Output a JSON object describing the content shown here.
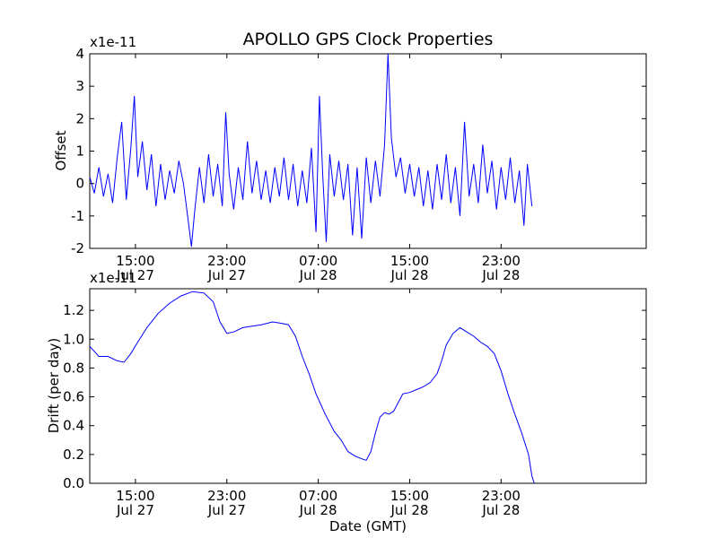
{
  "figure": {
    "title": "APOLLO GPS Clock Properties",
    "line_color": "#0000ff",
    "background": "#ffffff"
  },
  "chart_data": [
    {
      "type": "line",
      "title": "APOLLO GPS Clock Properties",
      "xlabel": "",
      "ylabel": "Offset",
      "y_offset_text": "x1e-11",
      "ylim": [
        -2,
        4
      ],
      "y_ticks": [
        -2,
        -1,
        0,
        1,
        2,
        3,
        4
      ],
      "x_range_hours": [
        11,
        59.7
      ],
      "x_ticks": [
        {
          "hour": 15,
          "time": "15:00",
          "date": "Jul 27"
        },
        {
          "hour": 23,
          "time": "23:00",
          "date": "Jul 27"
        },
        {
          "hour": 31,
          "time": "07:00",
          "date": "Jul 28"
        },
        {
          "hour": 39,
          "time": "15:00",
          "date": "Jul 28"
        },
        {
          "hour": 47,
          "time": "23:00",
          "date": "Jul 28"
        }
      ],
      "series": [
        {
          "note_units": "hours from Jul 27 00:00 GMT; values x1e-11",
          "points": [
            [
              11.0,
              0.2
            ],
            [
              11.4,
              -0.3
            ],
            [
              11.8,
              0.5
            ],
            [
              12.2,
              -0.4
            ],
            [
              12.6,
              0.3
            ],
            [
              13.0,
              -0.6
            ],
            [
              13.4,
              0.8
            ],
            [
              13.8,
              1.9
            ],
            [
              14.2,
              -0.5
            ],
            [
              14.6,
              1.1
            ],
            [
              14.9,
              2.7
            ],
            [
              15.2,
              0.2
            ],
            [
              15.6,
              1.3
            ],
            [
              16.0,
              -0.2
            ],
            [
              16.4,
              0.9
            ],
            [
              16.8,
              -0.7
            ],
            [
              17.2,
              0.6
            ],
            [
              17.6,
              -0.5
            ],
            [
              18.0,
              0.4
            ],
            [
              18.4,
              -0.3
            ],
            [
              18.8,
              0.7
            ],
            [
              19.2,
              0.0
            ],
            [
              19.6,
              -1.1
            ],
            [
              19.9,
              -1.95
            ],
            [
              20.2,
              -0.8
            ],
            [
              20.6,
              0.5
            ],
            [
              21.0,
              -0.6
            ],
            [
              21.4,
              0.9
            ],
            [
              21.8,
              -0.4
            ],
            [
              22.2,
              0.6
            ],
            [
              22.6,
              -0.7
            ],
            [
              22.9,
              2.2
            ],
            [
              23.2,
              0.3
            ],
            [
              23.6,
              -0.8
            ],
            [
              24.0,
              0.5
            ],
            [
              24.4,
              -0.5
            ],
            [
              24.8,
              1.3
            ],
            [
              25.2,
              -0.3
            ],
            [
              25.6,
              0.7
            ],
            [
              26.0,
              -0.5
            ],
            [
              26.4,
              0.4
            ],
            [
              26.8,
              -0.6
            ],
            [
              27.2,
              0.5
            ],
            [
              27.6,
              -0.4
            ],
            [
              28.0,
              0.8
            ],
            [
              28.4,
              -0.5
            ],
            [
              28.8,
              0.6
            ],
            [
              29.2,
              -0.7
            ],
            [
              29.6,
              0.4
            ],
            [
              30.0,
              -0.6
            ],
            [
              30.4,
              1.1
            ],
            [
              30.8,
              -1.5
            ],
            [
              31.1,
              2.7
            ],
            [
              31.4,
              0.2
            ],
            [
              31.7,
              -1.8
            ],
            [
              32.0,
              0.9
            ],
            [
              32.4,
              -0.4
            ],
            [
              32.8,
              0.7
            ],
            [
              33.2,
              -0.5
            ],
            [
              33.6,
              0.6
            ],
            [
              34.0,
              -1.6
            ],
            [
              34.4,
              0.5
            ],
            [
              34.8,
              -1.7
            ],
            [
              35.2,
              0.8
            ],
            [
              35.6,
              -0.6
            ],
            [
              36.0,
              0.7
            ],
            [
              36.4,
              -0.4
            ],
            [
              36.8,
              1.2
            ],
            [
              37.1,
              4.0
            ],
            [
              37.4,
              1.4
            ],
            [
              37.8,
              0.2
            ],
            [
              38.2,
              0.8
            ],
            [
              38.6,
              -0.3
            ],
            [
              39.0,
              0.6
            ],
            [
              39.4,
              -0.4
            ],
            [
              39.8,
              0.5
            ],
            [
              40.2,
              -0.7
            ],
            [
              40.6,
              0.4
            ],
            [
              41.0,
              -0.8
            ],
            [
              41.4,
              0.6
            ],
            [
              41.8,
              -0.5
            ],
            [
              42.2,
              0.9
            ],
            [
              42.6,
              -0.6
            ],
            [
              43.0,
              0.5
            ],
            [
              43.4,
              -1.0
            ],
            [
              43.8,
              1.9
            ],
            [
              44.2,
              -0.4
            ],
            [
              44.6,
              0.6
            ],
            [
              45.0,
              -0.6
            ],
            [
              45.4,
              1.2
            ],
            [
              45.8,
              -0.3
            ],
            [
              46.2,
              0.7
            ],
            [
              46.6,
              -0.8
            ],
            [
              47.0,
              0.5
            ],
            [
              47.4,
              -0.5
            ],
            [
              47.8,
              0.8
            ],
            [
              48.2,
              -0.6
            ],
            [
              48.6,
              0.4
            ],
            [
              49.0,
              -1.3
            ],
            [
              49.3,
              0.6
            ],
            [
              49.7,
              -0.7
            ]
          ]
        }
      ]
    },
    {
      "type": "line",
      "title": "",
      "xlabel": "Date (GMT)",
      "ylabel": "Drift (per day)",
      "y_offset_text": "x1e-11",
      "ylim": [
        0.0,
        1.35
      ],
      "y_ticks": [
        0.0,
        0.2,
        0.4,
        0.6,
        0.8,
        1.0,
        1.2
      ],
      "y_tick_labels": [
        "0.0",
        "0.2",
        "0.4",
        "0.6",
        "0.8",
        "1.0",
        "1.2"
      ],
      "x_range_hours": [
        11,
        59.7
      ],
      "x_ticks": [
        {
          "hour": 15,
          "time": "15:00",
          "date": "Jul 27"
        },
        {
          "hour": 23,
          "time": "23:00",
          "date": "Jul 27"
        },
        {
          "hour": 31,
          "time": "07:00",
          "date": "Jul 28"
        },
        {
          "hour": 39,
          "time": "15:00",
          "date": "Jul 28"
        },
        {
          "hour": 47,
          "time": "23:00",
          "date": "Jul 28"
        }
      ],
      "series": [
        {
          "points": [
            [
              11.0,
              0.95
            ],
            [
              11.8,
              0.88
            ],
            [
              12.6,
              0.88
            ],
            [
              13.4,
              0.85
            ],
            [
              14.0,
              0.84
            ],
            [
              14.6,
              0.9
            ],
            [
              15.2,
              0.98
            ],
            [
              16.0,
              1.08
            ],
            [
              17.0,
              1.18
            ],
            [
              18.0,
              1.25
            ],
            [
              19.0,
              1.3
            ],
            [
              20.0,
              1.33
            ],
            [
              21.0,
              1.32
            ],
            [
              21.8,
              1.26
            ],
            [
              22.4,
              1.12
            ],
            [
              23.0,
              1.04
            ],
            [
              23.6,
              1.05
            ],
            [
              24.4,
              1.08
            ],
            [
              25.2,
              1.09
            ],
            [
              26.0,
              1.1
            ],
            [
              27.0,
              1.12
            ],
            [
              27.8,
              1.11
            ],
            [
              28.4,
              1.1
            ],
            [
              29.0,
              1.02
            ],
            [
              29.6,
              0.88
            ],
            [
              30.2,
              0.76
            ],
            [
              30.8,
              0.62
            ],
            [
              31.6,
              0.48
            ],
            [
              32.4,
              0.36
            ],
            [
              33.0,
              0.3
            ],
            [
              33.6,
              0.22
            ],
            [
              34.2,
              0.19
            ],
            [
              34.8,
              0.17
            ],
            [
              35.2,
              0.16
            ],
            [
              35.6,
              0.22
            ],
            [
              36.0,
              0.35
            ],
            [
              36.4,
              0.46
            ],
            [
              36.8,
              0.49
            ],
            [
              37.2,
              0.48
            ],
            [
              37.6,
              0.5
            ],
            [
              38.0,
              0.56
            ],
            [
              38.4,
              0.62
            ],
            [
              39.0,
              0.63
            ],
            [
              39.6,
              0.65
            ],
            [
              40.2,
              0.67
            ],
            [
              40.8,
              0.7
            ],
            [
              41.4,
              0.76
            ],
            [
              41.8,
              0.85
            ],
            [
              42.2,
              0.96
            ],
            [
              42.8,
              1.04
            ],
            [
              43.4,
              1.08
            ],
            [
              44.0,
              1.05
            ],
            [
              44.6,
              1.02
            ],
            [
              45.2,
              0.98
            ],
            [
              45.8,
              0.95
            ],
            [
              46.4,
              0.9
            ],
            [
              47.0,
              0.78
            ],
            [
              47.6,
              0.62
            ],
            [
              48.2,
              0.48
            ],
            [
              48.8,
              0.35
            ],
            [
              49.4,
              0.2
            ],
            [
              49.7,
              0.05
            ],
            [
              49.9,
              0.0
            ]
          ]
        }
      ]
    }
  ]
}
